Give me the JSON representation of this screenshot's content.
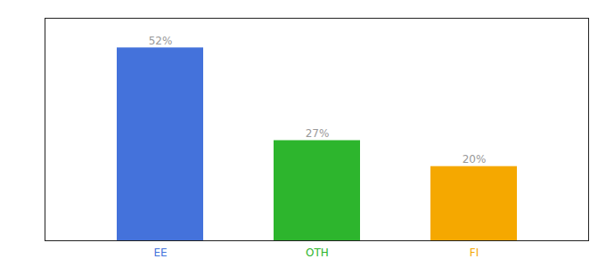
{
  "chart_data": {
    "type": "bar",
    "categories": [
      "EE",
      "OTH",
      "FI"
    ],
    "values": [
      52,
      27,
      20
    ],
    "value_labels": [
      "52%",
      "27%",
      "20%"
    ],
    "colors": [
      "#4472db",
      "#2db52d",
      "#f5a800"
    ],
    "ylim": [
      0,
      60
    ],
    "grid": false,
    "data_labels": true,
    "tick_labels": "x"
  }
}
